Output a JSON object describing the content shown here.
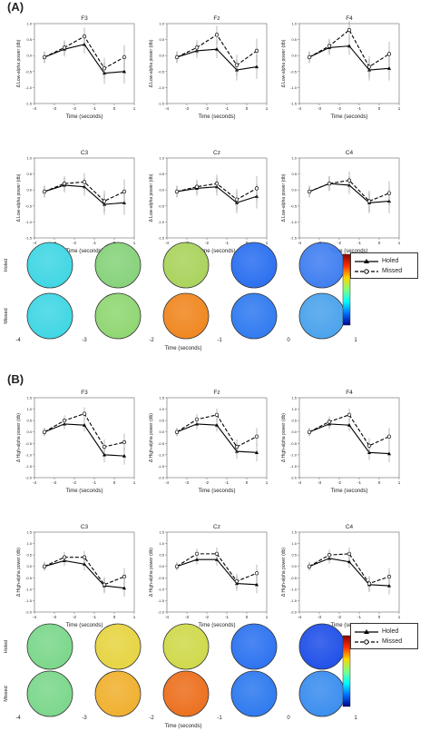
{
  "figure": {
    "panels": [
      {
        "label": "(A)",
        "ylabel": "Δ Low-alpha power (db)",
        "heads_xlabel": "Time (seconds)",
        "heads_ticks": [
          "-4",
          "-3",
          "-2",
          "-1",
          "0",
          "1"
        ],
        "row_labels": [
          "Holed",
          "Missed"
        ],
        "legend": [
          "Holed",
          "Missed"
        ],
        "head_colors": {
          "holed": [
            "#3fd6e4",
            "#86d27a",
            "#a9d35c",
            "#2a6ff0",
            "#3f7ef0"
          ],
          "missed": [
            "#3fd6e4",
            "#8fd672",
            "#f0861f",
            "#2f7af0",
            "#4aa2ec"
          ]
        }
      },
      {
        "label": "(B)",
        "ylabel": "Δ High-alpha power (db)",
        "heads_xlabel": "Time (seconds)",
        "heads_ticks": [
          "-4",
          "-3",
          "-2",
          "-1",
          "0",
          "1"
        ],
        "row_labels": [
          "Holed",
          "Missed"
        ],
        "legend": [
          "Holed",
          "Missed"
        ],
        "head_colors": {
          "holed": [
            "#7bd78a",
            "#e6d441",
            "#cfd94a",
            "#2c72f0",
            "#1f4fe8"
          ],
          "missed": [
            "#7bd78a",
            "#f0b02e",
            "#ec6f1d",
            "#2d79ef",
            "#3a8def"
          ]
        }
      }
    ],
    "colorbar": [
      "#8b0000",
      "#ff3000",
      "#ffd700",
      "#7fff7f",
      "#00ffff",
      "#0070ff",
      "#00008b"
    ]
  },
  "chart_data": [
    {
      "type": "line",
      "title": "F3",
      "xlabel": "Time (seconds)",
      "ylabel": "Δ Low-alpha power (db)",
      "xlim": [
        -4,
        1
      ],
      "ylim": [
        -1.5,
        1.0
      ],
      "x": [
        -3.5,
        -2.5,
        -1.5,
        -0.5,
        0.5
      ],
      "series": [
        {
          "name": "Holed",
          "values": [
            -0.05,
            0.2,
            0.35,
            -0.55,
            -0.5
          ]
        },
        {
          "name": "Missed",
          "values": [
            -0.05,
            0.25,
            0.6,
            -0.4,
            -0.05
          ]
        }
      ]
    },
    {
      "type": "line",
      "title": "Fz",
      "xlabel": "Time (seconds)",
      "ylabel": "Δ Low-alpha power (db)",
      "xlim": [
        -4,
        1
      ],
      "ylim": [
        -1.5,
        1.0
      ],
      "x": [
        -3.5,
        -2.5,
        -1.5,
        -0.5,
        0.5
      ],
      "series": [
        {
          "name": "Holed",
          "values": [
            -0.05,
            0.15,
            0.2,
            -0.45,
            -0.35
          ]
        },
        {
          "name": "Missed",
          "values": [
            -0.05,
            0.25,
            0.65,
            -0.3,
            0.15
          ]
        }
      ]
    },
    {
      "type": "line",
      "title": "F4",
      "xlabel": "Time (seconds)",
      "ylabel": "Δ Low-alpha power (db)",
      "xlim": [
        -4,
        1
      ],
      "ylim": [
        -1.5,
        1.0
      ],
      "x": [
        -3.5,
        -2.5,
        -1.5,
        -0.5,
        0.5
      ],
      "series": [
        {
          "name": "Holed",
          "values": [
            -0.05,
            0.25,
            0.3,
            -0.45,
            -0.4
          ]
        },
        {
          "name": "Missed",
          "values": [
            -0.05,
            0.3,
            0.8,
            -0.35,
            0.05
          ]
        }
      ]
    },
    {
      "type": "line",
      "title": "C3",
      "xlabel": "Time (seconds)",
      "ylabel": "Δ Low-alpha power (db)",
      "xlim": [
        -4,
        1
      ],
      "ylim": [
        -1.5,
        1.0
      ],
      "x": [
        -3.5,
        -2.5,
        -1.5,
        -0.5,
        0.5
      ],
      "series": [
        {
          "name": "Holed",
          "values": [
            -0.05,
            0.15,
            0.1,
            -0.45,
            -0.4
          ]
        },
        {
          "name": "Missed",
          "values": [
            -0.05,
            0.2,
            0.25,
            -0.35,
            -0.05
          ]
        }
      ]
    },
    {
      "type": "line",
      "title": "Cz",
      "xlabel": "Time (seconds)",
      "ylabel": "Δ Low-alpha power (db)",
      "xlim": [
        -4,
        1
      ],
      "ylim": [
        -1.5,
        1.0
      ],
      "x": [
        -3.5,
        -2.5,
        -1.5,
        -0.5,
        0.5
      ],
      "series": [
        {
          "name": "Holed",
          "values": [
            -0.05,
            0.05,
            0.1,
            -0.4,
            -0.2
          ]
        },
        {
          "name": "Missed",
          "values": [
            -0.05,
            0.1,
            0.2,
            -0.3,
            0.05
          ]
        }
      ]
    },
    {
      "type": "line",
      "title": "C4",
      "xlabel": "Time (seconds)",
      "ylabel": "Δ Low-alpha power (db)",
      "xlim": [
        -4,
        1
      ],
      "ylim": [
        -1.5,
        1.0
      ],
      "x": [
        -3.5,
        -2.5,
        -1.5,
        -0.5,
        0.5
      ],
      "series": [
        {
          "name": "Holed",
          "values": [
            -0.05,
            0.2,
            0.15,
            -0.4,
            -0.35
          ]
        },
        {
          "name": "Missed",
          "values": [
            -0.05,
            0.2,
            0.3,
            -0.35,
            -0.1
          ]
        }
      ]
    },
    {
      "type": "line",
      "title": "F3",
      "xlabel": "Time (seconds)",
      "ylabel": "Δ High-alpha power (db)",
      "xlim": [
        -4,
        1
      ],
      "ylim": [
        -2.0,
        1.5
      ],
      "x": [
        -3.5,
        -2.5,
        -1.5,
        -0.5,
        0.5
      ],
      "series": [
        {
          "name": "Holed",
          "values": [
            0.0,
            0.35,
            0.3,
            -1.0,
            -1.05
          ]
        },
        {
          "name": "Missed",
          "values": [
            0.0,
            0.5,
            0.8,
            -0.65,
            -0.45
          ]
        }
      ]
    },
    {
      "type": "line",
      "title": "Fz",
      "xlabel": "Time (seconds)",
      "ylabel": "Δ High-alpha power (db)",
      "xlim": [
        -4,
        1
      ],
      "ylim": [
        -2.0,
        1.5
      ],
      "x": [
        -3.5,
        -2.5,
        -1.5,
        -0.5,
        0.5
      ],
      "series": [
        {
          "name": "Holed",
          "values": [
            0.0,
            0.35,
            0.3,
            -0.85,
            -0.9
          ]
        },
        {
          "name": "Missed",
          "values": [
            0.0,
            0.55,
            0.75,
            -0.65,
            -0.2
          ]
        }
      ]
    },
    {
      "type": "line",
      "title": "F4",
      "xlabel": "Time (seconds)",
      "ylabel": "Δ High-alpha power (db)",
      "xlim": [
        -4,
        1
      ],
      "ylim": [
        -2.0,
        1.5
      ],
      "x": [
        -3.5,
        -2.5,
        -1.5,
        -0.5,
        0.5
      ],
      "series": [
        {
          "name": "Holed",
          "values": [
            0.0,
            0.35,
            0.3,
            -0.9,
            -0.95
          ]
        },
        {
          "name": "Missed",
          "values": [
            0.0,
            0.45,
            0.75,
            -0.6,
            -0.2
          ]
        }
      ]
    },
    {
      "type": "line",
      "title": "C3",
      "xlabel": "Time (seconds)",
      "ylabel": "Δ High-alpha power (db)",
      "xlim": [
        -4,
        1
      ],
      "ylim": [
        -2.0,
        1.5
      ],
      "x": [
        -3.5,
        -2.5,
        -1.5,
        -0.5,
        0.5
      ],
      "series": [
        {
          "name": "Holed",
          "values": [
            0.0,
            0.25,
            0.1,
            -0.85,
            -0.95
          ]
        },
        {
          "name": "Missed",
          "values": [
            0.0,
            0.4,
            0.4,
            -0.8,
            -0.45
          ]
        }
      ]
    },
    {
      "type": "line",
      "title": "Cz",
      "xlabel": "Time (seconds)",
      "ylabel": "Δ High-alpha power (db)",
      "xlim": [
        -4,
        1
      ],
      "ylim": [
        -2.0,
        1.5
      ],
      "x": [
        -3.5,
        -2.5,
        -1.5,
        -0.5,
        0.5
      ],
      "series": [
        {
          "name": "Holed",
          "values": [
            0.0,
            0.3,
            0.3,
            -0.75,
            -0.8
          ]
        },
        {
          "name": "Missed",
          "values": [
            0.0,
            0.55,
            0.55,
            -0.65,
            -0.3
          ]
        }
      ]
    },
    {
      "type": "line",
      "title": "C4",
      "xlabel": "Time (seconds)",
      "ylabel": "Δ High-alpha power (db)",
      "xlim": [
        -4,
        1
      ],
      "ylim": [
        -2.0,
        1.5
      ],
      "x": [
        -3.5,
        -2.5,
        -1.5,
        -0.5,
        0.5
      ],
      "series": [
        {
          "name": "Holed",
          "values": [
            0.0,
            0.35,
            0.2,
            -0.8,
            -0.85
          ]
        },
        {
          "name": "Missed",
          "values": [
            0.0,
            0.5,
            0.55,
            -0.75,
            -0.45
          ]
        }
      ]
    }
  ]
}
